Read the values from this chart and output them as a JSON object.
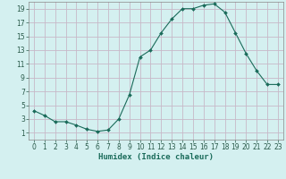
{
  "x": [
    0,
    1,
    2,
    3,
    4,
    5,
    6,
    7,
    8,
    9,
    10,
    11,
    12,
    13,
    14,
    15,
    16,
    17,
    18,
    19,
    20,
    21,
    22,
    23
  ],
  "y": [
    4.2,
    3.5,
    2.6,
    2.6,
    2.1,
    1.5,
    1.2,
    1.4,
    3.0,
    6.5,
    12.0,
    13.0,
    15.5,
    17.5,
    19.0,
    19.0,
    19.5,
    19.7,
    18.5,
    15.5,
    12.5,
    10.0,
    8.0,
    8.0
  ],
  "xlabel": "Humidex (Indice chaleur)",
  "bg_color": "#d4f0f0",
  "grid_major_color": "#c0dede",
  "grid_minor_color": "#d0eaea",
  "line_color": "#1a6b5a",
  "marker_color": "#1a6b5a",
  "xlim": [
    -0.5,
    23.5
  ],
  "ylim": [
    0,
    20
  ],
  "xticks": [
    0,
    1,
    2,
    3,
    4,
    5,
    6,
    7,
    8,
    9,
    10,
    11,
    12,
    13,
    14,
    15,
    16,
    17,
    18,
    19,
    20,
    21,
    22,
    23
  ],
  "yticks": [
    1,
    3,
    5,
    7,
    9,
    11,
    13,
    15,
    17,
    19
  ],
  "tick_fontsize": 5.5,
  "xlabel_fontsize": 6.5
}
